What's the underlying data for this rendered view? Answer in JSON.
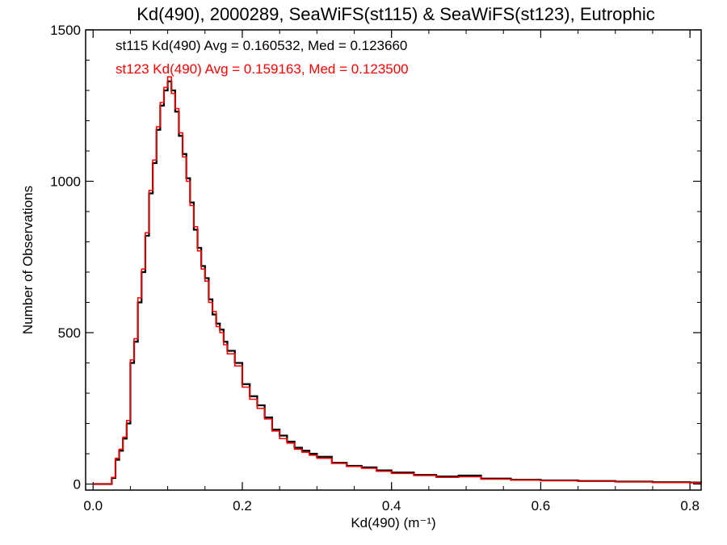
{
  "chart_data": {
    "type": "line",
    "title": "Kd(490), 2000289, SeaWiFS(st115) & SeaWiFS(st123), Eutrophic",
    "xlabel": "Kd(490) (m⁻¹)",
    "ylabel": "Number of Observations",
    "xlim": [
      -0.01,
      0.815
    ],
    "ylim": [
      -20,
      1500
    ],
    "xticks": [
      "0.0",
      "0.2",
      "0.4",
      "0.6",
      "0.8"
    ],
    "yticks": [
      "0",
      "500",
      "1000",
      "1500"
    ],
    "grid": false,
    "legend_position": "top-left",
    "series": [
      {
        "name": "st115",
        "label": "st115 Kd(490) Avg = 0.160532, Med = 0.123660",
        "color": "#000000",
        "x": [
          0.0,
          0.02,
          0.025,
          0.03,
          0.035,
          0.04,
          0.045,
          0.05,
          0.055,
          0.06,
          0.065,
          0.07,
          0.075,
          0.08,
          0.085,
          0.09,
          0.095,
          0.1,
          0.105,
          0.11,
          0.115,
          0.12,
          0.125,
          0.13,
          0.135,
          0.14,
          0.145,
          0.15,
          0.155,
          0.16,
          0.165,
          0.17,
          0.175,
          0.18,
          0.19,
          0.2,
          0.21,
          0.22,
          0.23,
          0.24,
          0.25,
          0.26,
          0.27,
          0.28,
          0.29,
          0.3,
          0.32,
          0.34,
          0.36,
          0.38,
          0.4,
          0.43,
          0.46,
          0.49,
          0.52,
          0.56,
          0.6,
          0.65,
          0.7,
          0.75,
          0.8,
          0.815
        ],
        "y": [
          0,
          0,
          20,
          80,
          110,
          150,
          200,
          400,
          470,
          600,
          700,
          820,
          960,
          1060,
          1170,
          1250,
          1300,
          1330,
          1300,
          1230,
          1150,
          1090,
          1010,
          930,
          840,
          780,
          720,
          680,
          610,
          560,
          530,
          510,
          470,
          440,
          400,
          330,
          290,
          260,
          220,
          180,
          160,
          140,
          120,
          110,
          100,
          90,
          70,
          60,
          55,
          45,
          38,
          30,
          25,
          28,
          18,
          14,
          12,
          10,
          8,
          6,
          5,
          4
        ]
      },
      {
        "name": "st123",
        "label": "st123 Kd(490) Avg = 0.159163, Med = 0.123500",
        "color": "#ff0000",
        "x": [
          0.0,
          0.02,
          0.025,
          0.03,
          0.035,
          0.04,
          0.045,
          0.05,
          0.055,
          0.06,
          0.065,
          0.07,
          0.075,
          0.08,
          0.085,
          0.09,
          0.095,
          0.1,
          0.105,
          0.11,
          0.115,
          0.12,
          0.125,
          0.13,
          0.135,
          0.14,
          0.145,
          0.15,
          0.155,
          0.16,
          0.165,
          0.17,
          0.175,
          0.18,
          0.19,
          0.2,
          0.21,
          0.22,
          0.23,
          0.24,
          0.25,
          0.26,
          0.27,
          0.28,
          0.29,
          0.3,
          0.32,
          0.34,
          0.36,
          0.38,
          0.4,
          0.43,
          0.46,
          0.49,
          0.52,
          0.56,
          0.6,
          0.65,
          0.7,
          0.75,
          0.8,
          0.815
        ],
        "y": [
          0,
          0,
          22,
          85,
          115,
          155,
          210,
          410,
          480,
          615,
          710,
          830,
          970,
          1070,
          1180,
          1260,
          1310,
          1345,
          1290,
          1240,
          1160,
          1080,
          1000,
          920,
          850,
          770,
          710,
          670,
          600,
          570,
          520,
          500,
          460,
          430,
          390,
          320,
          280,
          250,
          215,
          175,
          150,
          135,
          115,
          105,
          95,
          85,
          68,
          58,
          52,
          42,
          35,
          28,
          22,
          24,
          16,
          13,
          11,
          9,
          7,
          5,
          4,
          3
        ]
      }
    ]
  }
}
